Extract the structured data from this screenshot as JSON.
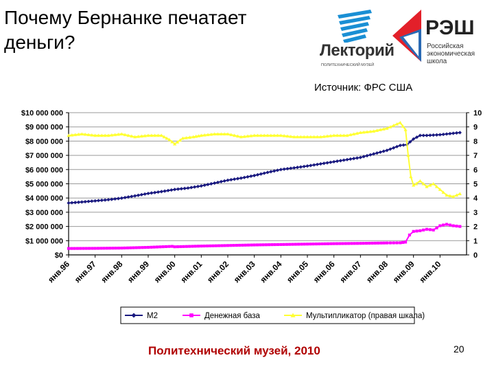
{
  "slide": {
    "title": "Почему Бернанке печатает деньги?",
    "source": "Источник: ФРС США",
    "footer": "Политехнический музей, 2010",
    "page_number": "20"
  },
  "logos": {
    "lektoriy": {
      "name": "Лекторий",
      "subtitle": "ПОЛИТЕХНИЧЕСКИЙ МУЗЕЙ",
      "color": "#1a8fd4"
    },
    "nes": {
      "name": "РЭШ",
      "subtitle_lines": [
        "Российская",
        "экономическая",
        "школа"
      ],
      "red": "#e3202a",
      "blue": "#2a6ab4"
    }
  },
  "chart_data": {
    "type": "line",
    "title": "",
    "xlabel": "",
    "ylabel": "",
    "x_tick_labels": [
      "янв.96",
      "янв.97",
      "янв.98",
      "янв.99",
      "янв.00",
      "янв.01",
      "янв.02",
      "янв.03",
      "янв.04",
      "янв.05",
      "янв.06",
      "янв.07",
      "янв.08",
      "янв.09",
      "янв.10"
    ],
    "y_left": {
      "range": [
        0,
        10000000
      ],
      "tick_labels": [
        "$0",
        "$1 000 000",
        "$2 000 000",
        "$3 000 000",
        "$4 000 000",
        "$5 000 000",
        "$6 000 000",
        "$7 000 000",
        "$8 000 000",
        "$9 000 000",
        "$10 000 000"
      ]
    },
    "y_right": {
      "range": [
        0,
        10
      ],
      "tick_labels": [
        "0",
        "1",
        "2",
        "3",
        "4",
        "5",
        "6",
        "7",
        "8",
        "9",
        "10"
      ]
    },
    "grid": true,
    "legend_position": "bottom",
    "series": [
      {
        "name": "M2",
        "axis": "left",
        "color": "#1a1a80",
        "marker": "diamond",
        "x": [
          1996.0,
          1996.5,
          1997.0,
          1997.5,
          1998.0,
          1998.5,
          1999.0,
          1999.5,
          2000.0,
          2000.5,
          2001.0,
          2001.5,
          2002.0,
          2002.5,
          2003.0,
          2003.5,
          2004.0,
          2004.5,
          2005.0,
          2005.5,
          2006.0,
          2006.5,
          2007.0,
          2007.5,
          2008.0,
          2008.5,
          2008.75,
          2009.0,
          2009.25,
          2009.5,
          2010.0,
          2010.5,
          2010.75
        ],
        "values": [
          3650000,
          3720000,
          3800000,
          3880000,
          3990000,
          4150000,
          4320000,
          4450000,
          4600000,
          4700000,
          4850000,
          5050000,
          5250000,
          5400000,
          5580000,
          5800000,
          6000000,
          6120000,
          6250000,
          6400000,
          6550000,
          6700000,
          6850000,
          7100000,
          7350000,
          7700000,
          7750000,
          8150000,
          8400000,
          8400000,
          8450000,
          8550000,
          8600000
        ]
      },
      {
        "name": "Денежная база",
        "axis": "left",
        "color": "#ff00ff",
        "marker": "square",
        "x": [
          1996.0,
          1997.0,
          1998.0,
          1999.0,
          1999.9,
          2000.0,
          2001.0,
          2002.0,
          2003.0,
          2004.0,
          2005.0,
          2006.0,
          2007.0,
          2008.0,
          2008.5,
          2008.7,
          2008.85,
          2009.0,
          2009.25,
          2009.5,
          2009.75,
          2010.0,
          2010.25,
          2010.5,
          2010.75
        ],
        "values": [
          450000,
          460000,
          480000,
          530000,
          600000,
          570000,
          620000,
          660000,
          700000,
          730000,
          760000,
          790000,
          810000,
          840000,
          850000,
          900000,
          1400000,
          1650000,
          1700000,
          1800000,
          1750000,
          2050000,
          2150000,
          2050000,
          2000000
        ]
      },
      {
        "name": "Мультипликатор (правая шкала)",
        "axis": "right",
        "color": "#ffff33",
        "marker": "triangle",
        "x": [
          1996.0,
          1996.5,
          1997.0,
          1997.5,
          1998.0,
          1998.5,
          1999.0,
          1999.5,
          1999.8,
          2000.0,
          2000.3,
          2000.7,
          2001.0,
          2001.5,
          2002.0,
          2002.5,
          2003.0,
          2003.5,
          2004.0,
          2004.5,
          2005.0,
          2005.5,
          2006.0,
          2006.5,
          2007.0,
          2007.5,
          2008.0,
          2008.25,
          2008.5,
          2008.7,
          2008.8,
          2008.9,
          2009.0,
          2009.1,
          2009.25,
          2009.5,
          2009.75,
          2010.0,
          2010.25,
          2010.5,
          2010.75
        ],
        "values": [
          8.4,
          8.5,
          8.4,
          8.4,
          8.5,
          8.3,
          8.4,
          8.4,
          8.1,
          7.8,
          8.2,
          8.3,
          8.4,
          8.5,
          8.5,
          8.3,
          8.4,
          8.4,
          8.4,
          8.3,
          8.3,
          8.3,
          8.4,
          8.4,
          8.6,
          8.7,
          8.9,
          9.1,
          9.3,
          8.8,
          7.0,
          5.5,
          4.9,
          5.0,
          5.2,
          4.8,
          5.0,
          4.6,
          4.2,
          4.1,
          4.3
        ]
      }
    ]
  }
}
